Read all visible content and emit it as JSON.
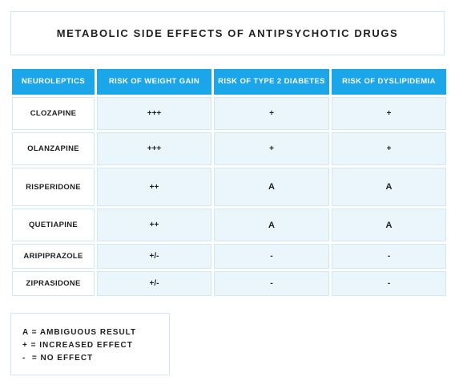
{
  "title": "METABOLIC SIDE EFFECTS OF ANTIPSYCHOTIC DRUGS",
  "table": {
    "headers": [
      "NEUROLEPTICS",
      "RISK OF WEIGHT GAIN",
      "RISK OF TYPE 2 DIABETES",
      "RISK OF DYSLIPIDEMIA"
    ],
    "rows": [
      {
        "drug": "CLOZAPINE",
        "weight": "+++",
        "diabetes": "+",
        "dyslipidemia": "+"
      },
      {
        "drug": "OLANZAPINE",
        "weight": "+++",
        "diabetes": "+",
        "dyslipidemia": "+"
      },
      {
        "drug": "RISPERIDONE",
        "weight": "++",
        "diabetes": "A",
        "dyslipidemia": "A"
      },
      {
        "drug": "QUETIAPINE",
        "weight": "++",
        "diabetes": "A",
        "dyslipidemia": "A"
      },
      {
        "drug": "ARIPIPRAZOLE",
        "weight": "+/-",
        "diabetes": "-",
        "dyslipidemia": "-"
      },
      {
        "drug": "ZIPRASIDONE",
        "weight": "+/-",
        "diabetes": "-",
        "dyslipidemia": "-"
      }
    ]
  },
  "legend": [
    "A = AMBIGUOUS RESULT",
    "+ = INCREASED EFFECT",
    "-  = NO EFFECT"
  ],
  "colors": {
    "header_bg": "#1aa6e8",
    "cell_bg": "#eaf6fb",
    "border": "#cfe8f3"
  }
}
